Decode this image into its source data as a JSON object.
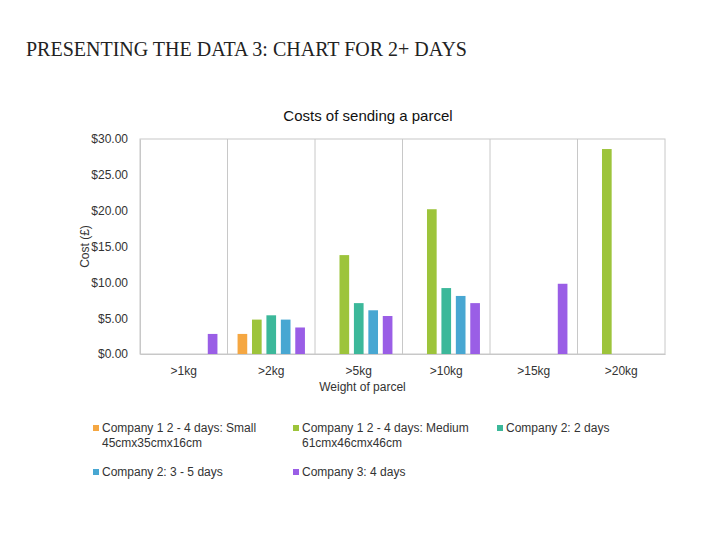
{
  "slide_title": "PRESENTING THE DATA 3: CHART FOR 2+ DAYS",
  "chart_data": {
    "type": "bar",
    "title": "Costs of sending a parcel",
    "x_label": "Weight of parcel",
    "y_label": "Cost (£)",
    "categories": [
      ">1kg",
      ">2kg",
      ">5kg",
      ">10kg",
      ">15kg",
      ">20kg"
    ],
    "series": [
      {
        "name": "Company 1 2 - 4 days: Small 45cmx35cmx16cm",
        "color": "#f5a742",
        "values": [
          null,
          2.8,
          null,
          null,
          null,
          null
        ]
      },
      {
        "name": "Company 1 2 - 4 days: Medium 61cmx46cmx46cm",
        "color": "#9dc43b",
        "values": [
          null,
          4.8,
          13.8,
          20.2,
          null,
          28.6
        ]
      },
      {
        "name": "Company 2: 2 days",
        "color": "#3cb89a",
        "values": [
          null,
          5.4,
          7.1,
          9.2,
          null,
          null
        ]
      },
      {
        "name": "Company 2: 3 - 5 days",
        "color": "#48a7d2",
        "values": [
          null,
          4.8,
          6.1,
          8.1,
          null,
          null
        ]
      },
      {
        "name": "Company 3: 4 days",
        "color": "#9a5ee6",
        "values": [
          2.8,
          3.7,
          5.3,
          7.1,
          9.8,
          null
        ]
      }
    ],
    "ylim": [
      0,
      30
    ],
    "yticks": [
      {
        "value": 0,
        "label": "$0.00"
      },
      {
        "value": 5,
        "label": "$5.00"
      },
      {
        "value": 10,
        "label": "$10.00"
      },
      {
        "value": 15,
        "label": "$15.00"
      },
      {
        "value": 20,
        "label": "$20.00"
      },
      {
        "value": 25,
        "label": "$25.00"
      },
      {
        "value": 30,
        "label": "$30.00"
      }
    ],
    "legend": "bottom"
  }
}
